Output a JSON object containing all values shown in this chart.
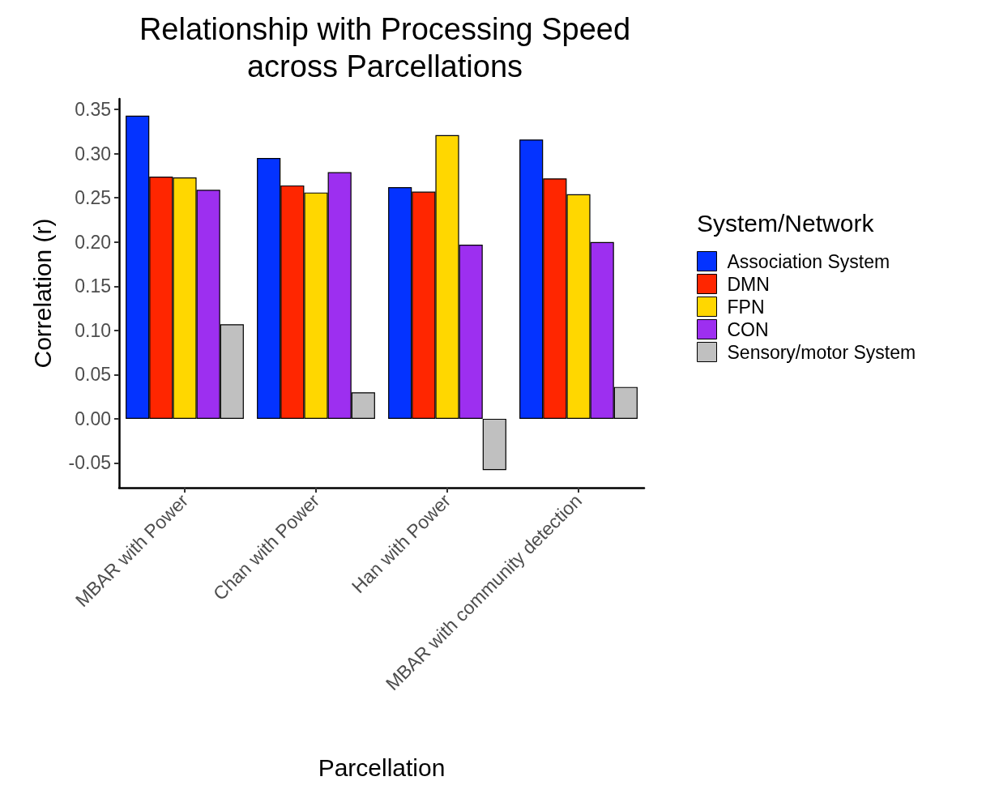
{
  "chart_data": {
    "type": "bar",
    "title": "Relationship with Processing Speed\nacross Parcellations",
    "xlabel": "Parcellation",
    "ylabel": "Correlation (r)",
    "legend_title": "System/Network",
    "categories": [
      "MBAR with Power",
      "Chan with Power",
      "Han with Power",
      "MBAR with community detection"
    ],
    "series": [
      {
        "name": "Association System",
        "color": "#0433ff",
        "values": [
          0.343,
          0.295,
          0.262,
          0.316
        ]
      },
      {
        "name": "DMN",
        "color": "#ff2600",
        "values": [
          0.274,
          0.264,
          0.257,
          0.272
        ]
      },
      {
        "name": "FPN",
        "color": "#ffd700",
        "values": [
          0.273,
          0.256,
          0.321,
          0.254
        ]
      },
      {
        "name": "CON",
        "color": "#9d2ff0",
        "values": [
          0.259,
          0.279,
          0.197,
          0.2
        ]
      },
      {
        "name": "Sensory/motor System",
        "color": "#c0c0c0",
        "values": [
          0.107,
          0.03,
          -0.058,
          0.036
        ]
      }
    ],
    "ylim": [
      -0.078,
      0.362
    ],
    "yticks": [
      {
        "value": -0.05,
        "label": "-0.05"
      },
      {
        "value": 0,
        "label": "0.00"
      },
      {
        "value": 0.05,
        "label": "0.05"
      },
      {
        "value": 0.1,
        "label": "0.10"
      },
      {
        "value": 0.15,
        "label": "0.15"
      },
      {
        "value": 0.2,
        "label": "0.20"
      },
      {
        "value": 0.25,
        "label": "0.25"
      },
      {
        "value": 0.3,
        "label": "0.30"
      },
      {
        "value": 0.35,
        "label": "0.35"
      }
    ],
    "grid": false,
    "legend": "right"
  }
}
